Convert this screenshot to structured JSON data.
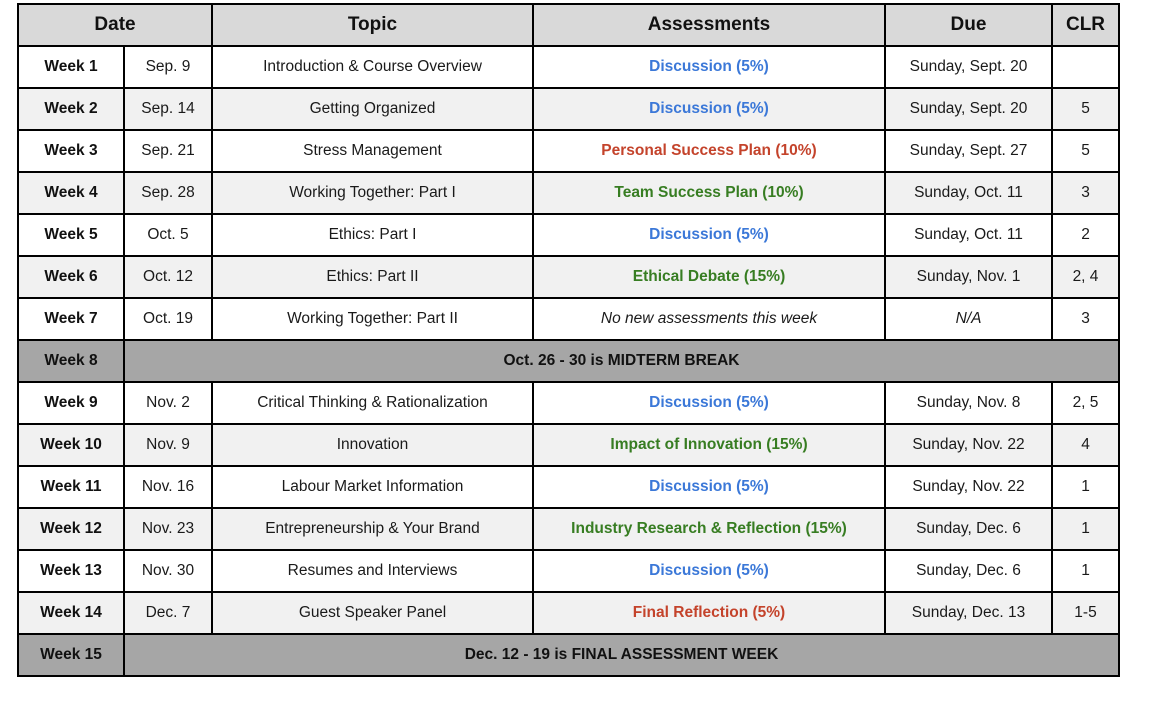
{
  "table": {
    "colors": {
      "blue": "#3b78d8",
      "red": "#c4432b",
      "green": "#377d22",
      "header_bg": "#d9d9d9",
      "banner_bg": "#a6a6a6",
      "alt_row_bg": "#f1f1f1",
      "border": "#000000"
    },
    "headers": {
      "date": "Date",
      "topic": "Topic",
      "assessments": "Assessments",
      "due": "Due",
      "clr": "CLR"
    },
    "rows": [
      {
        "week": "Week 1",
        "date": "Sep. 9",
        "topic": "Introduction & Course Overview",
        "assessment": "Discussion (5%)",
        "assessment_color": "blue",
        "due": "Sunday, Sept. 20",
        "clr": ""
      },
      {
        "week": "Week 2",
        "date": "Sep. 14",
        "topic": "Getting Organized",
        "assessment": "Discussion (5%)",
        "assessment_color": "blue",
        "due": "Sunday, Sept. 20",
        "clr": "5"
      },
      {
        "week": "Week 3",
        "date": "Sep. 21",
        "topic": "Stress Management",
        "assessment": "Personal Success Plan (10%)",
        "assessment_color": "red",
        "due": "Sunday, Sept. 27",
        "clr": "5"
      },
      {
        "week": "Week 4",
        "date": "Sep. 28",
        "topic": "Working Together: Part I",
        "assessment": "Team Success Plan (10%)",
        "assessment_color": "green",
        "due": "Sunday, Oct. 11",
        "clr": "3"
      },
      {
        "week": "Week 5",
        "date": "Oct. 5",
        "topic": "Ethics: Part I",
        "assessment": "Discussion (5%)",
        "assessment_color": "blue",
        "due": "Sunday, Oct. 11",
        "clr": "2"
      },
      {
        "week": "Week 6",
        "date": "Oct. 12",
        "topic": "Ethics: Part II",
        "assessment": "Ethical Debate (15%)",
        "assessment_color": "green",
        "due": "Sunday, Nov. 1",
        "clr": "2, 4"
      },
      {
        "week": "Week 7",
        "date": "Oct. 19",
        "topic": "Working Together: Part II",
        "assessment": "No new assessments this week",
        "assessment_color": null,
        "due": "N/A",
        "clr": "3"
      },
      {
        "week": "Week 8",
        "banner": "Oct. 26 - 30 is MIDTERM BREAK"
      },
      {
        "week": "Week 9",
        "date": "Nov. 2",
        "topic": "Critical Thinking & Rationalization",
        "assessment": "Discussion (5%)",
        "assessment_color": "blue",
        "due": "Sunday, Nov. 8",
        "clr": "2, 5"
      },
      {
        "week": "Week 10",
        "date": "Nov. 9",
        "topic": "Innovation",
        "assessment": "Impact of Innovation (15%)",
        "assessment_color": "green",
        "due": "Sunday, Nov. 22",
        "clr": "4"
      },
      {
        "week": "Week 11",
        "date": "Nov. 16",
        "topic": "Labour Market Information",
        "assessment": "Discussion (5%)",
        "assessment_color": "blue",
        "due": "Sunday, Nov. 22",
        "clr": "1"
      },
      {
        "week": "Week 12",
        "date": "Nov. 23",
        "topic": "Entrepreneurship & Your Brand",
        "assessment": "Industry Research & Reflection (15%)",
        "assessment_color": "green",
        "due": "Sunday, Dec. 6",
        "clr": "1"
      },
      {
        "week": "Week 13",
        "date": "Nov. 30",
        "topic": "Resumes and Interviews",
        "assessment": "Discussion (5%)",
        "assessment_color": "blue",
        "due": "Sunday, Dec. 6",
        "clr": "1"
      },
      {
        "week": "Week 14",
        "date": "Dec. 7",
        "topic": "Guest Speaker Panel",
        "assessment": "Final Reflection (5%)",
        "assessment_color": "red",
        "due": "Sunday, Dec. 13",
        "clr": "1-5"
      },
      {
        "week": "Week 15",
        "banner": "Dec. 12 - 19 is FINAL ASSESSMENT WEEK"
      }
    ]
  }
}
